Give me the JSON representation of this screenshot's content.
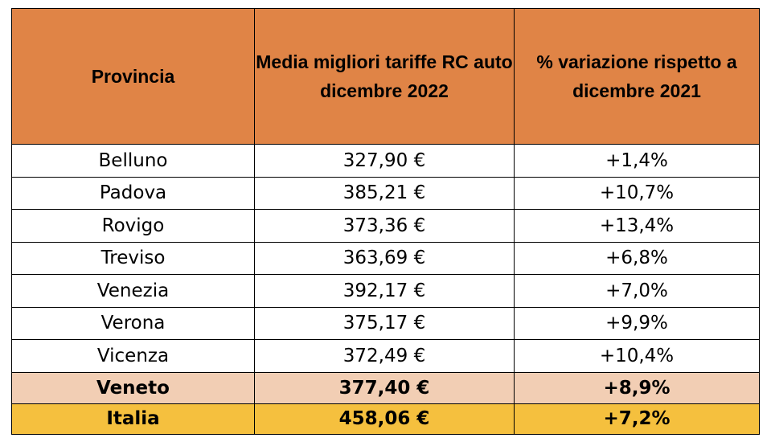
{
  "table": {
    "headers": [
      "Provincia",
      "Media migliori tariffe RC auto dicembre 2022",
      "% variazione rispetto a dicembre 2021"
    ],
    "rows": [
      [
        "Belluno",
        "327,90 €",
        "+1,4%"
      ],
      [
        "Padova",
        "385,21 €",
        "+10,7%"
      ],
      [
        "Rovigo",
        "373,36 €",
        "+13,4%"
      ],
      [
        "Treviso",
        "363,69 €",
        "+6,8%"
      ],
      [
        "Venezia",
        "392,17 €",
        "+7,0%"
      ],
      [
        "Verona",
        "375,17 €",
        "+9,9%"
      ],
      [
        "Vicenza",
        "372,49 €",
        "+10,4%"
      ]
    ],
    "veneto": [
      "Veneto",
      "377,40 €",
      "+8,9%"
    ],
    "italia": [
      "Italia",
      "458,06 €",
      "+7,2%"
    ]
  },
  "colors": {
    "header_bg": "#e08446",
    "veneto_bg": "#f2ceb4",
    "italia_bg": "#f5c03e"
  }
}
